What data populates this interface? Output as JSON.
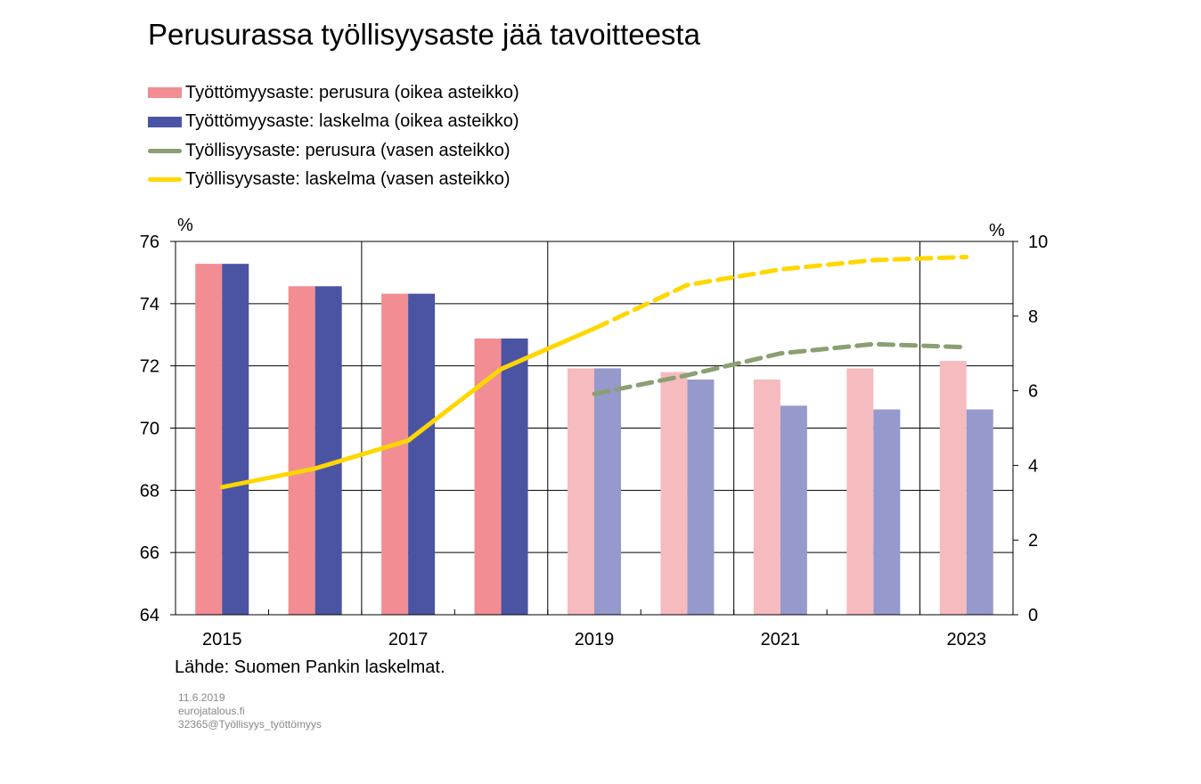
{
  "title": "Perusurassa työllisyysaste jää tavoitteesta",
  "source": "Lähde: Suomen Pankin laskelmat.",
  "meta": [
    "11.6.2019",
    "eurojatalous.fi",
    "32365@Työllisyys_työttömyys"
  ],
  "chart_data": {
    "type": "bar",
    "title": "Perusurassa työllisyysaste jää tavoitteesta",
    "categories": [
      "2015",
      "2016",
      "2017",
      "2018",
      "2019",
      "2020",
      "2021",
      "2022",
      "2023"
    ],
    "x_tick_labels": [
      "2015",
      "2017",
      "2019",
      "2021",
      "2023"
    ],
    "forecast_start": "2019",
    "left_axis": {
      "unit": "%",
      "ylim": [
        64,
        76
      ],
      "ticks": [
        64,
        66,
        68,
        70,
        72,
        74,
        76
      ]
    },
    "right_axis": {
      "unit": "%",
      "ylim": [
        0,
        10
      ],
      "ticks": [
        0,
        2,
        4,
        6,
        8,
        10
      ]
    },
    "grid": true,
    "legend_position": "top-left",
    "series": [
      {
        "name": "Työttömyysaste: perusura (oikea asteikko)",
        "kind": "bar",
        "axis": "right",
        "color": "#F28D93",
        "forecast_color": "#F6BBBF",
        "values": [
          9.4,
          8.8,
          8.6,
          7.4,
          6.6,
          6.5,
          6.3,
          6.6,
          6.8
        ]
      },
      {
        "name": "Työttömyysaste: laskelma (oikea asteikko)",
        "kind": "bar",
        "axis": "right",
        "color": "#4B54A3",
        "forecast_color": "#9699CC",
        "values": [
          9.4,
          8.8,
          8.6,
          7.4,
          6.6,
          6.3,
          5.6,
          5.5,
          5.5
        ]
      },
      {
        "name": "Työllisyysaste: perusura (vasen asteikko)",
        "kind": "line",
        "axis": "left",
        "color": "#8A9F72",
        "style": "dashed",
        "values": [
          null,
          null,
          null,
          null,
          71.1,
          71.7,
          72.4,
          72.7,
          72.6
        ]
      },
      {
        "name": "Työllisyysaste: laskelma (vasen asteikko)",
        "kind": "line",
        "axis": "left",
        "color": "#FFD700",
        "style": "solid-then-dashed",
        "values": [
          68.1,
          68.7,
          69.6,
          71.9,
          73.2,
          74.6,
          75.1,
          75.4,
          75.5
        ]
      }
    ]
  }
}
